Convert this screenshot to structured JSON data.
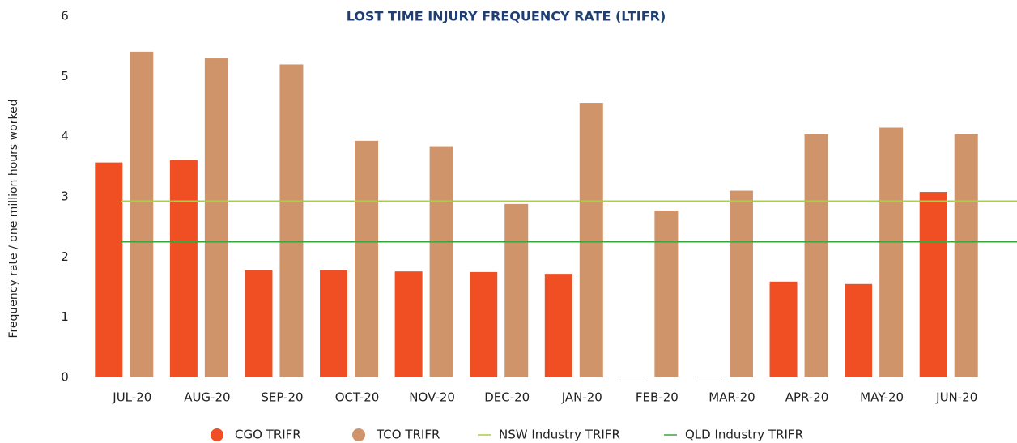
{
  "chart_data": {
    "type": "bar",
    "title": "LOST TIME INJURY FREQUENCY RATE (LTIFR)",
    "y_label": "Frequency rate / one million hours worked",
    "categories": [
      "JUL-20",
      "AUG-20",
      "SEP-20",
      "OCT-20",
      "NOV-20",
      "DEC-20",
      "JAN-20",
      "FEB-20",
      "MAR-20",
      "APR-20",
      "MAY-20",
      "JUN-20"
    ],
    "series": [
      {
        "name": "CGO TRIFR",
        "color": "#f04e23",
        "values": [
          3.57,
          3.61,
          1.78,
          1.78,
          1.76,
          1.75,
          1.72,
          0,
          0,
          1.59,
          1.55,
          3.08
        ]
      },
      {
        "name": "TCO TRIFR",
        "color": "#d0946a",
        "values": [
          5.41,
          5.3,
          5.2,
          3.93,
          3.84,
          2.88,
          4.56,
          2.77,
          3.1,
          4.04,
          4.15,
          4.04
        ]
      }
    ],
    "reference_lines": [
      {
        "name": "NSW Industry TRIFR",
        "color": "#a8cf45",
        "value": 2.93
      },
      {
        "name": "QLD Industry TRIFR",
        "color": "#3aa53a",
        "value": 2.25
      }
    ],
    "ylim": [
      0,
      6
    ],
    "yticks": [
      0,
      1,
      2,
      3,
      4,
      5,
      6
    ],
    "grid": false
  }
}
